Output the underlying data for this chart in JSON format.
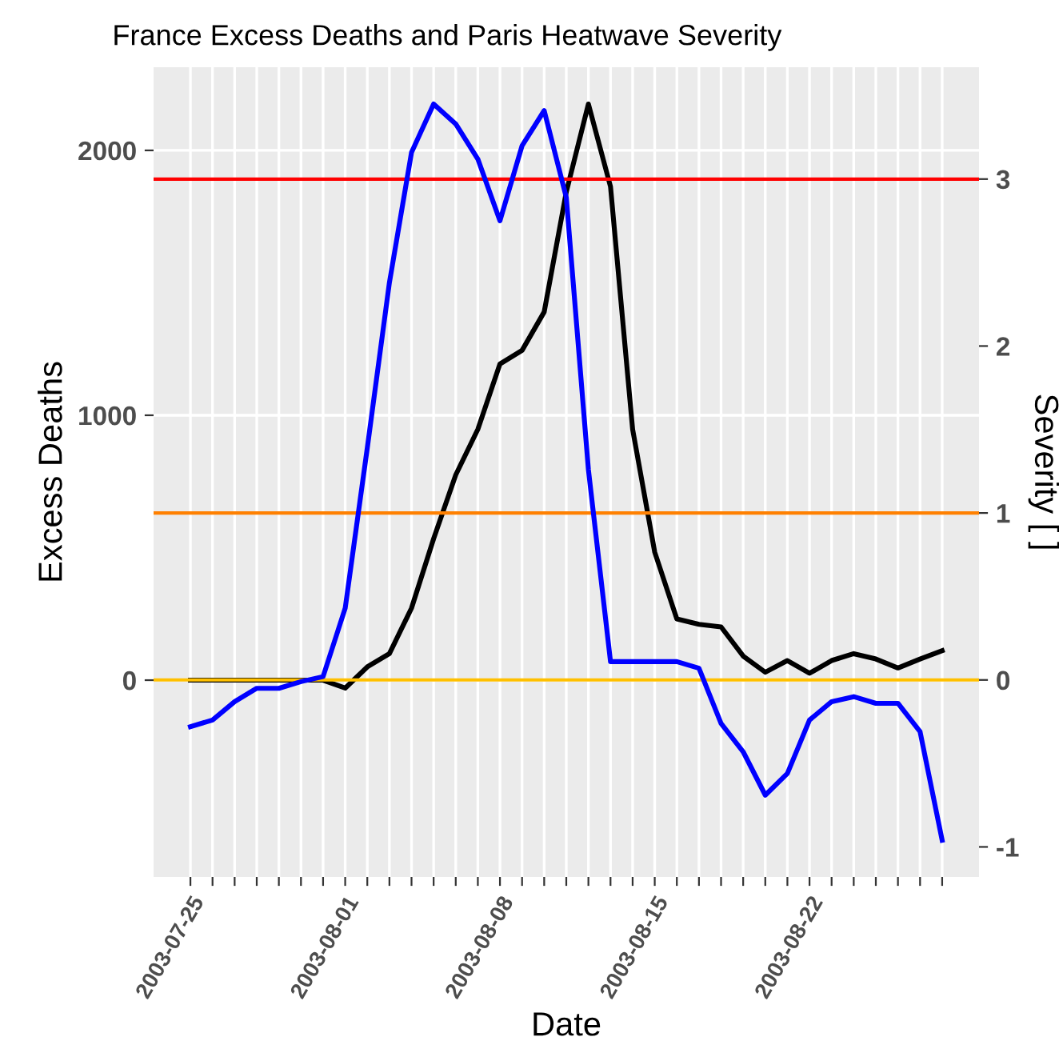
{
  "chart_data": {
    "type": "line",
    "title": "France Excess Deaths and Paris Heatwave Severity",
    "xlabel": "Date",
    "ylabel": "Excess Deaths",
    "y2label": "Severity [ ]",
    "x": [
      "2003-07-25",
      "2003-07-26",
      "2003-07-27",
      "2003-07-28",
      "2003-07-29",
      "2003-07-30",
      "2003-07-31",
      "2003-08-01",
      "2003-08-02",
      "2003-08-03",
      "2003-08-04",
      "2003-08-05",
      "2003-08-06",
      "2003-08-07",
      "2003-08-08",
      "2003-08-09",
      "2003-08-10",
      "2003-08-11",
      "2003-08-12",
      "2003-08-13",
      "2003-08-14",
      "2003-08-15",
      "2003-08-16",
      "2003-08-17",
      "2003-08-18",
      "2003-08-19",
      "2003-08-20",
      "2003-08-21",
      "2003-08-22",
      "2003-08-23",
      "2003-08-24",
      "2003-08-25",
      "2003-08-26",
      "2003-08-27",
      "2003-08-28"
    ],
    "series": [
      {
        "color": "#000000",
        "values": [
          0,
          0,
          0,
          0,
          0,
          0,
          0,
          -30,
          50,
          100,
          272,
          534,
          775,
          947,
          1194,
          1245,
          1390,
          1843,
          2175,
          1863,
          947,
          483,
          231,
          211,
          201,
          91,
          30,
          74,
          26,
          74,
          100,
          80,
          46,
          80,
          111
        ]
      },
      {
        "color": "#0000ff",
        "axis": "y2",
        "values": [
          -0.28,
          -0.24,
          -0.13,
          -0.05,
          -0.05,
          -0.01,
          0.02,
          0.43,
          1.39,
          2.38,
          3.16,
          3.45,
          3.33,
          3.12,
          2.75,
          3.2,
          3.41,
          2.89,
          1.26,
          0.11,
          0.11,
          0.11,
          0.11,
          0.07,
          -0.26,
          -0.43,
          -0.69,
          -0.56,
          -0.24,
          -0.13,
          -0.1,
          -0.14,
          -0.14,
          -0.31,
          -0.96
        ]
      }
    ],
    "ref_lines": [
      {
        "axis": "y2",
        "value": 3,
        "color": "#ff0000"
      },
      {
        "axis": "y2",
        "value": 1,
        "color": "#ff8000"
      },
      {
        "axis": "y2",
        "value": 0,
        "color": "#ffc000"
      }
    ],
    "xlim": [
      "2003-07-23T08:00",
      "2003-08-29T16:00"
    ],
    "xticks": [
      {
        "value": "2003-07-25",
        "label": "2003-07-25"
      },
      {
        "value": "2003-07-26",
        "label": null
      },
      {
        "value": "2003-07-27",
        "label": null
      },
      {
        "value": "2003-07-28",
        "label": null
      },
      {
        "value": "2003-07-29",
        "label": null
      },
      {
        "value": "2003-07-30",
        "label": null
      },
      {
        "value": "2003-07-31",
        "label": null
      },
      {
        "value": "2003-08-01",
        "label": "2003-08-01"
      },
      {
        "value": "2003-08-02",
        "label": null
      },
      {
        "value": "2003-08-03",
        "label": null
      },
      {
        "value": "2003-08-04",
        "label": null
      },
      {
        "value": "2003-08-05",
        "label": null
      },
      {
        "value": "2003-08-06",
        "label": null
      },
      {
        "value": "2003-08-07",
        "label": null
      },
      {
        "value": "2003-08-08",
        "label": "2003-08-08"
      },
      {
        "value": "2003-08-09",
        "label": null
      },
      {
        "value": "2003-08-10",
        "label": null
      },
      {
        "value": "2003-08-11",
        "label": null
      },
      {
        "value": "2003-08-12",
        "label": null
      },
      {
        "value": "2003-08-13",
        "label": null
      },
      {
        "value": "2003-08-14",
        "label": null
      },
      {
        "value": "2003-08-15",
        "label": "2003-08-15"
      },
      {
        "value": "2003-08-16",
        "label": null
      },
      {
        "value": "2003-08-17",
        "label": null
      },
      {
        "value": "2003-08-18",
        "label": null
      },
      {
        "value": "2003-08-19",
        "label": null
      },
      {
        "value": "2003-08-20",
        "label": null
      },
      {
        "value": "2003-08-21",
        "label": null
      },
      {
        "value": "2003-08-22",
        "label": "2003-08-22"
      },
      {
        "value": "2003-08-23",
        "label": null
      },
      {
        "value": "2003-08-24",
        "label": null
      },
      {
        "value": "2003-08-25",
        "label": null
      },
      {
        "value": "2003-08-26",
        "label": null
      },
      {
        "value": "2003-08-27",
        "label": null
      },
      {
        "value": "2003-08-28",
        "label": null
      }
    ],
    "ylim": [
      -743,
      2314
    ],
    "yticks": [
      0,
      1000,
      2000
    ],
    "y2lim": [
      -1.18,
      3.67
    ],
    "y2ticks": [
      -1,
      0,
      1,
      2,
      3
    ],
    "grid": true,
    "line_style": "solid",
    "marker": "none"
  }
}
